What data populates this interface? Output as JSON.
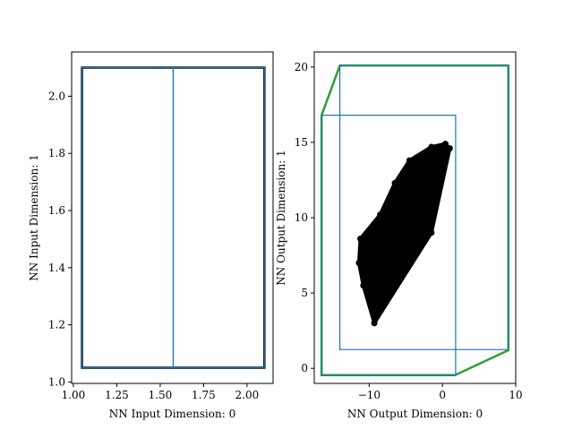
{
  "chart_data": [
    {
      "type": "scatter",
      "xlabel": "NN Input Dimension: 0",
      "ylabel": "NN Input Dimension: 1",
      "xlim": [
        0.99,
        2.15
      ],
      "ylim": [
        0.995,
        2.155
      ],
      "xticks": [
        "1.00",
        "1.25",
        "1.50",
        "1.75",
        "2.00"
      ],
      "xtick_values": [
        1.0,
        1.25,
        1.5,
        1.75,
        2.0
      ],
      "yticks": [
        "1.0",
        "1.2",
        "1.4",
        "1.6",
        "1.8",
        "2.0"
      ],
      "ytick_values": [
        1.0,
        1.2,
        1.4,
        1.6,
        1.8,
        2.0
      ],
      "shapes": [
        {
          "name": "input-domain",
          "color": "#000000",
          "points": [
            [
              1.05,
              1.05
            ],
            [
              2.1,
              1.05
            ],
            [
              2.1,
              2.1
            ],
            [
              1.05,
              2.1
            ]
          ]
        },
        {
          "name": "input-partition",
          "color": "#1f77b4",
          "points": [
            [
              1.05,
              1.05
            ],
            [
              1.575,
              1.05
            ],
            [
              1.575,
              2.1
            ],
            [
              1.05,
              2.1
            ]
          ]
        },
        {
          "name": "input-partition",
          "color": "#1f77b4",
          "points": [
            [
              1.575,
              1.05
            ],
            [
              2.1,
              1.05
            ],
            [
              2.1,
              2.1
            ],
            [
              1.575,
              2.1
            ]
          ]
        }
      ],
      "grid": false
    },
    {
      "type": "scatter",
      "xlabel": "NN Output Dimension: 0",
      "ylabel": "NN Output Dimension: 1",
      "xlim": [
        -17.5,
        10
      ],
      "ylim": [
        -1.0,
        21.0
      ],
      "xticks": [
        "−10",
        "0",
        "10"
      ],
      "xtick_values": [
        -10,
        0,
        10
      ],
      "yticks": [
        "0",
        "5",
        "10",
        "15",
        "20"
      ],
      "ytick_values": [
        0,
        5,
        10,
        15,
        20
      ],
      "shapes": [
        {
          "name": "output-reachable-hull",
          "color": "#2ca02c",
          "points": [
            [
              -16.5,
              -0.45
            ],
            [
              1.7,
              -0.45
            ],
            [
              9.0,
              1.2
            ],
            [
              9.0,
              20.1
            ],
            [
              -14.0,
              20.1
            ],
            [
              -16.5,
              16.8
            ]
          ]
        },
        {
          "name": "output-partition-bounds",
          "color": "#1f77b4",
          "points": [
            [
              -16.5,
              -0.45
            ],
            [
              1.8,
              -0.45
            ],
            [
              1.8,
              16.8
            ],
            [
              -16.5,
              16.8
            ]
          ]
        },
        {
          "name": "output-partition-bounds",
          "color": "#1f77b4",
          "points": [
            [
              -14.0,
              1.25
            ],
            [
              9.0,
              1.25
            ],
            [
              9.0,
              20.1
            ],
            [
              -14.0,
              20.1
            ]
          ]
        }
      ],
      "sample_region": {
        "color": "#000000",
        "points": [
          [
            -9.3,
            3.0
          ],
          [
            -1.5,
            9.0
          ],
          [
            1.0,
            14.6
          ],
          [
            0.4,
            14.9
          ],
          [
            -1.5,
            14.7
          ],
          [
            -4.5,
            13.8
          ],
          [
            -6.5,
            12.3
          ],
          [
            -8.5,
            10.2
          ],
          [
            -11.2,
            8.6
          ],
          [
            -11.4,
            7.0
          ],
          [
            -10.8,
            5.5
          ]
        ]
      },
      "grid": false
    }
  ]
}
